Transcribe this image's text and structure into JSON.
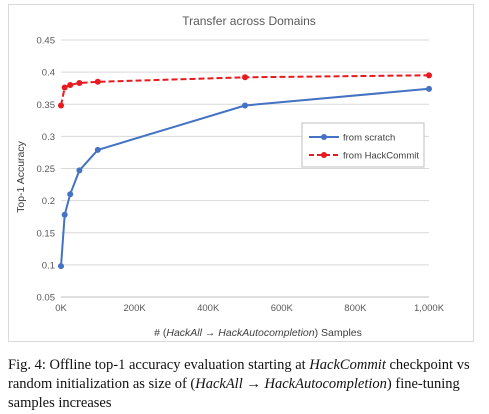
{
  "chart_data": {
    "type": "line",
    "title": "Transfer across Domains",
    "xlabel": "# (HackAll → HackAutocompletion) Samples",
    "ylabel": "Top-1 Accuracy",
    "xlim": [
      0,
      1000000
    ],
    "ylim": [
      0.05,
      0.45
    ],
    "x_ticks": [
      0,
      200000,
      400000,
      600000,
      800000,
      1000000
    ],
    "x_tick_labels": [
      "0K",
      "200K",
      "400K",
      "600K",
      "800K",
      "1,000K"
    ],
    "y_ticks": [
      0.05,
      0.1,
      0.15,
      0.2,
      0.25,
      0.3,
      0.35,
      0.4,
      0.45
    ],
    "y_tick_labels": [
      "0.05",
      "0.1",
      "0.15",
      "0.2",
      "0.25",
      "0.3",
      "0.35",
      "0.4",
      "0.45"
    ],
    "grid": "horizontal",
    "legend_position": "right",
    "series": [
      {
        "name": "from scratch",
        "color": "#4472c4",
        "style": "solid",
        "marker": "circle",
        "x": [
          0,
          10000,
          25000,
          50000,
          100000,
          500000,
          1000000
        ],
        "y": [
          0.098,
          0.178,
          0.21,
          0.247,
          0.279,
          0.348,
          0.374
        ]
      },
      {
        "name": "from HackCommit",
        "color": "#e8191f",
        "style": "dashed",
        "marker": "circle",
        "x": [
          0,
          10000,
          25000,
          50000,
          100000,
          500000,
          1000000
        ],
        "y": [
          0.348,
          0.376,
          0.38,
          0.383,
          0.385,
          0.392,
          0.395
        ]
      }
    ]
  },
  "caption": {
    "part1": "Fig. 4: Offline top-1 accuracy evaluation starting at ",
    "em1": "HackCommit",
    "part2": " checkpoint vs random initialization as size of (",
    "em2": "HackAll",
    "arrow": " → ",
    "em3": "HackAutocompletion",
    "part3": ") fine-tuning samples increases"
  }
}
